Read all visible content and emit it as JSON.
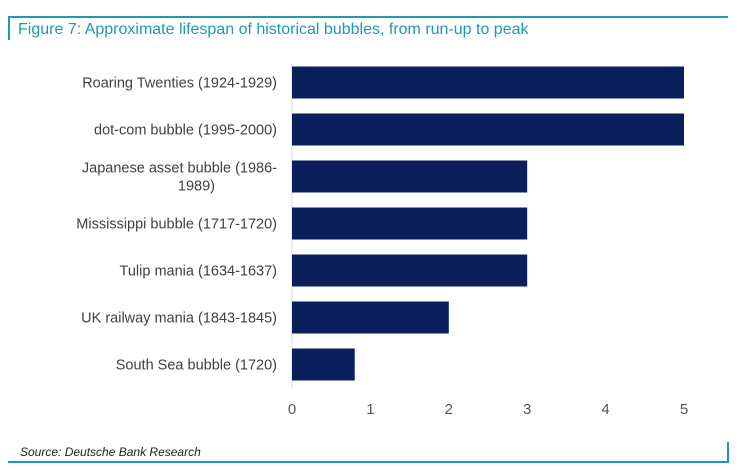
{
  "chart_data": {
    "type": "bar",
    "orientation": "horizontal",
    "title": "Figure 7: Approximate lifespan of historical bubbles, from run-up to peak",
    "source": "Source: Deutsche Bank Research",
    "categories": [
      "Roaring Twenties (1924-1929)",
      "dot-com bubble (1995-2000)",
      "Japanese asset bubble  (1986-1989)",
      "Mississippi bubble (1717-1720)",
      "Tulip mania (1634-1637)",
      "UK railway mania (1843-1845)",
      "South Sea bubble (1720)"
    ],
    "category_lines": [
      [
        "Roaring Twenties (1924-1929)"
      ],
      [
        "dot-com bubble (1995-2000)"
      ],
      [
        "Japanese asset bubble  (1986-",
        "1989)"
      ],
      [
        "Mississippi bubble (1717-1720)"
      ],
      [
        "Tulip mania (1634-1637)"
      ],
      [
        "UK railway mania (1843-1845)"
      ],
      [
        "South Sea bubble (1720)"
      ]
    ],
    "values": [
      5,
      5,
      3,
      3,
      3,
      2,
      0.8
    ],
    "xlim": [
      0,
      5
    ],
    "xticks": [
      "0",
      "1",
      "2",
      "3",
      "4",
      "5"
    ],
    "xlabel": "",
    "ylabel": "",
    "grid": false,
    "bar_color": "#0a1f5c",
    "accent_color": "#1e9ab3"
  }
}
